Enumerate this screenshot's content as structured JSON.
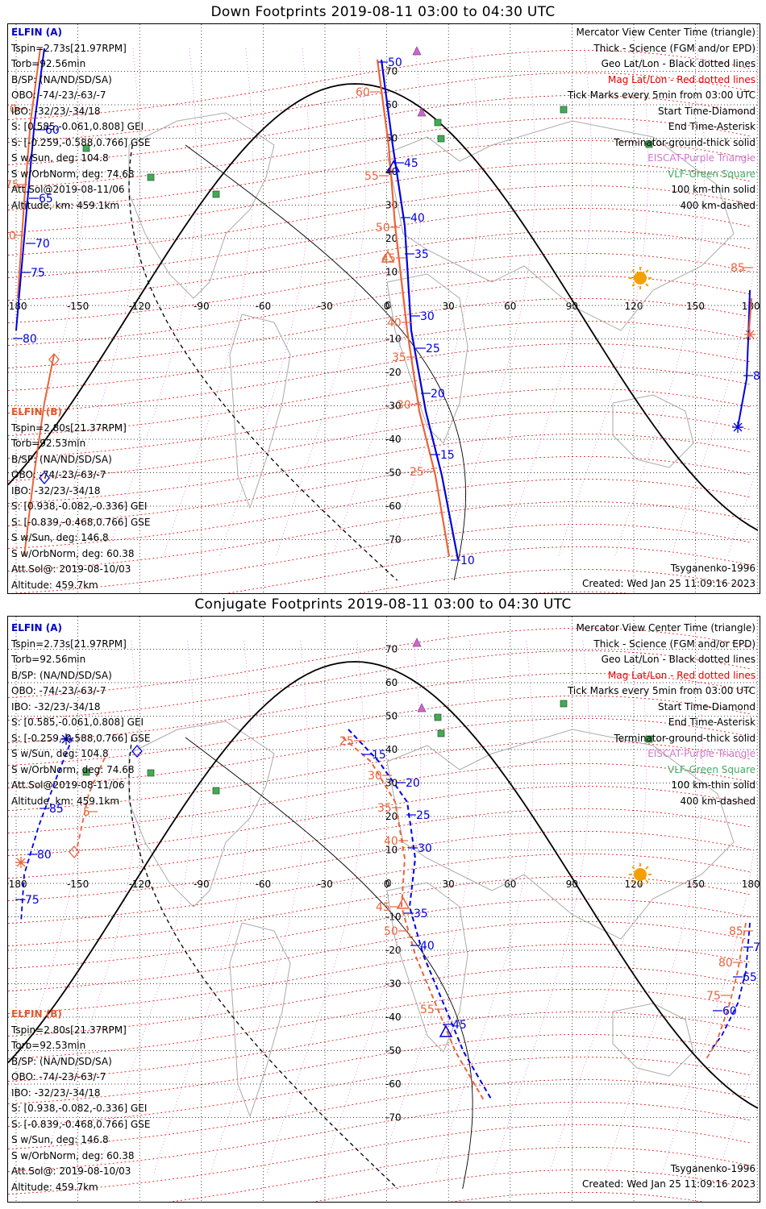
{
  "panels": [
    {
      "title": "Down Footprints 2019-08-11 03:00 to 04:30 UTC",
      "elfin_a": {
        "name": "ELFIN (A)",
        "lines": [
          "Tspin=2.73s[21.97RPM]",
          "Torb=92.56min",
          "B/SP: (NA/ND/SD/SA)",
          "OBO: -74/-23/-63/-7",
          "IBO: -32/23/-34/18",
          "S: [0.585,-0.061,0.808] GEI",
          "S: [-0.259,-0.588,0.766] GSE",
          "S w/Sun, deg: 104.8",
          "S w/OrbNorm, deg: 74.68",
          "Att.Sol@2019-08-11/06",
          "Altitude, km: 459.1km"
        ]
      },
      "elfin_b": {
        "name": "ELFIN (B)",
        "lines": [
          "Tspin=2.80s[21.37RPM]",
          "Torb=92.53min",
          "B/SP: (NA/ND/SD/SA)",
          "OBO: -74/-23/-63/-7",
          "IBO: -32/23/-34/18",
          "S: [0.938,-0.082,-0.336] GEI",
          "S: [-0.839,-0.468,0.766] GSE",
          "S w/Sun, deg: 146.8",
          "S w/OrbNorm, deg: 60.38",
          "Att.Sol@: 2019-08-10/03",
          "Altitude: 459.7km"
        ]
      },
      "model": "Tsyganenko-1996",
      "created": "Created: Wed Jan 25 11:09:16 2023",
      "orbit_a_labels": [
        "50",
        "45",
        "40",
        "35",
        "30",
        "25",
        "20",
        "15",
        "10"
      ],
      "orbit_b_labels": [
        "60",
        "55",
        "50",
        "45",
        "40",
        "35",
        "30",
        "25"
      ],
      "orbit_a_left_labels": [
        "60",
        "65",
        "70",
        "75",
        "80"
      ],
      "orbit_a_right_labels": [
        "85"
      ],
      "orbit_b_left_labels": [
        "70",
        "75",
        "80"
      ],
      "orbit_b_right_labels": [
        "85"
      ]
    },
    {
      "title": "Conjugate Footprints 2019-08-11 03:00 to 04:30 UTC",
      "elfin_a": {
        "name": "ELFIN (A)",
        "lines": [
          "Tspin=2.73s[21.97RPM]",
          "Torb=92.56min",
          "B/SP: (NA/ND/SD/SA)",
          "OBO: -74/-23/-63/-7",
          "IBO: -32/23/-34/18",
          "S: [0.585,-0.061,0.808] GEI",
          "S: [-0.259,-0.588,0.766] GSE",
          "S w/Sun, deg: 104.8",
          "S w/OrbNorm, deg: 74.68",
          "Att.Sol@2019-08-11/06",
          "Altitude, km: 459.1km"
        ]
      },
      "elfin_b": {
        "name": "ELFIN (B)",
        "lines": [
          "Tspin=2.80s[21.37RPM]",
          "Torb=92.53min",
          "B/SP: (NA/ND/SD/SA)",
          "OBO: -74/-23/-63/-7",
          "IBO: -32/23/-34/18",
          "S: [0.938,-0.082,-0.336] GEI",
          "S: [-0.839,-0.468,0.766] GSE",
          "S w/Sun, deg: 146.8",
          "S w/OrbNorm, deg: 60.38",
          "Att.Sol@: 2019-08-10/03",
          "Altitude: 459.7km"
        ]
      },
      "model": "Tsyganenko-1996",
      "created": "Created: Wed Jan 25 11:09:16 2023",
      "orbit_a_labels": [
        "15",
        "20",
        "25",
        "30",
        "35",
        "40",
        "45"
      ],
      "orbit_b_labels": [
        "25",
        "30",
        "35",
        "40",
        "45",
        "50",
        "55"
      ],
      "orbit_a_left_labels": [
        "85",
        "80",
        "75"
      ],
      "orbit_a_right_labels": [
        "70",
        "65",
        "60"
      ],
      "orbit_b_left_labels": [
        "5"
      ],
      "orbit_b_right_labels": [
        "85",
        "80",
        "75"
      ]
    }
  ],
  "legend": [
    {
      "text": "Mercator View Center Time (triangle)",
      "color": "black"
    },
    {
      "text": "Thick - Science (FGM and/or EPD)",
      "color": "black"
    },
    {
      "text": "Geo Lat/Lon - Black dotted lines",
      "color": "black"
    },
    {
      "text": "Mag Lat/Lon - Red dotted lines",
      "color": "red"
    },
    {
      "text": "Tick Marks every 5min from 03:00 UTC",
      "color": "black"
    },
    {
      "text": "Start Time-Diamond",
      "color": "black"
    },
    {
      "text": "End Time-Asterisk",
      "color": "black"
    },
    {
      "text": "Terminator-ground-thick solid",
      "color": "black"
    },
    {
      "text": "EISCAT-Purple Triangle",
      "color": "purple"
    },
    {
      "text": "VLF-Green Square",
      "color": "green"
    },
    {
      "text": "100 km-thin solid",
      "color": "black"
    },
    {
      "text": "400 km-dashed",
      "color": "black"
    }
  ],
  "axes": {
    "lon_labels": [
      "-180",
      "-150",
      "-120",
      "-90",
      "-60",
      "-30",
      "0",
      "30",
      "60",
      "90",
      "120",
      "150",
      "180"
    ],
    "lat_labels": [
      "70",
      "60",
      "50",
      "40",
      "30",
      "20",
      "10",
      "0",
      "-10",
      "-20",
      "-30",
      "-40",
      "-50",
      "-60",
      "-70"
    ]
  },
  "colors": {
    "elfin_a": "#0000dd",
    "elfin_b": "#e8643a",
    "mag_grid": "#e00000",
    "geo_grid": "#000000",
    "eiscat": "#cc66cc",
    "vlf": "#44aa55",
    "sun": "#f5a000"
  }
}
